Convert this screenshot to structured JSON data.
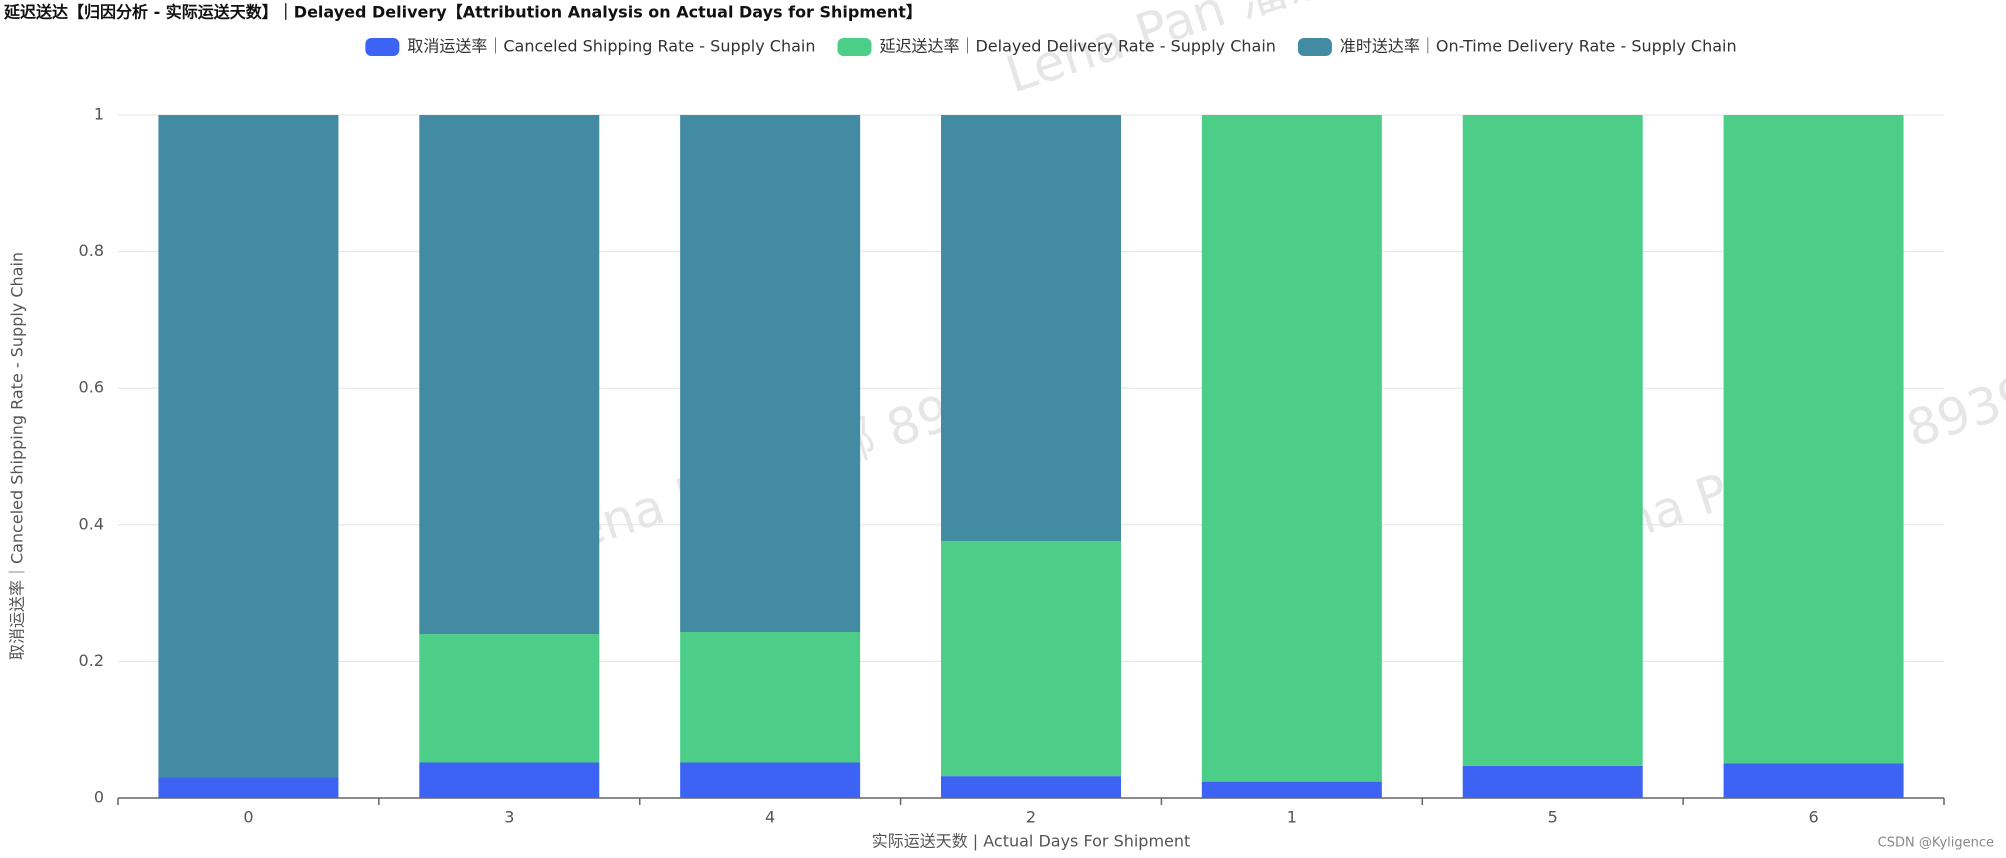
{
  "chart_data": {
    "type": "stacked_bar",
    "title": "延迟送达【归因分析 - 实际运送天数】｜Delayed Delivery【Attribution Analysis on Actual Days for Shipment】",
    "x_label": "实际运送天数 | Actual Days For Shipment",
    "y_label": "取消运送率｜Canceled Shipping Rate - Supply Chain",
    "categories": [
      "0",
      "3",
      "4",
      "2",
      "1",
      "5",
      "6"
    ],
    "series": [
      {
        "name": "取消运送率｜Canceled Shipping Rate - Supply Chain",
        "color": "#3d63f5",
        "values": [
          0.03,
          0.052,
          0.052,
          0.032,
          0.024,
          0.047,
          0.051
        ]
      },
      {
        "name": "延迟送达率｜Delayed Delivery Rate - Supply Chain",
        "color": "#4cce88",
        "values": [
          0,
          0.188,
          0.191,
          0.344,
          0.976,
          0.953,
          0.949
        ]
      },
      {
        "name": "准时送达率｜On-Time Delivery Rate - Supply Chain",
        "color": "#438aa3",
        "values": [
          0.97,
          0.76,
          0.757,
          0.624,
          0,
          0,
          0
        ]
      }
    ],
    "ylim": [
      0,
      1
    ],
    "yticks": [
      0,
      0.2,
      0.4,
      0.6,
      0.8,
      1
    ],
    "grid": true,
    "legend": "top",
    "watermark": "Lena Pan 潘娜 8939",
    "credit": "CSDN @Kyligence"
  }
}
